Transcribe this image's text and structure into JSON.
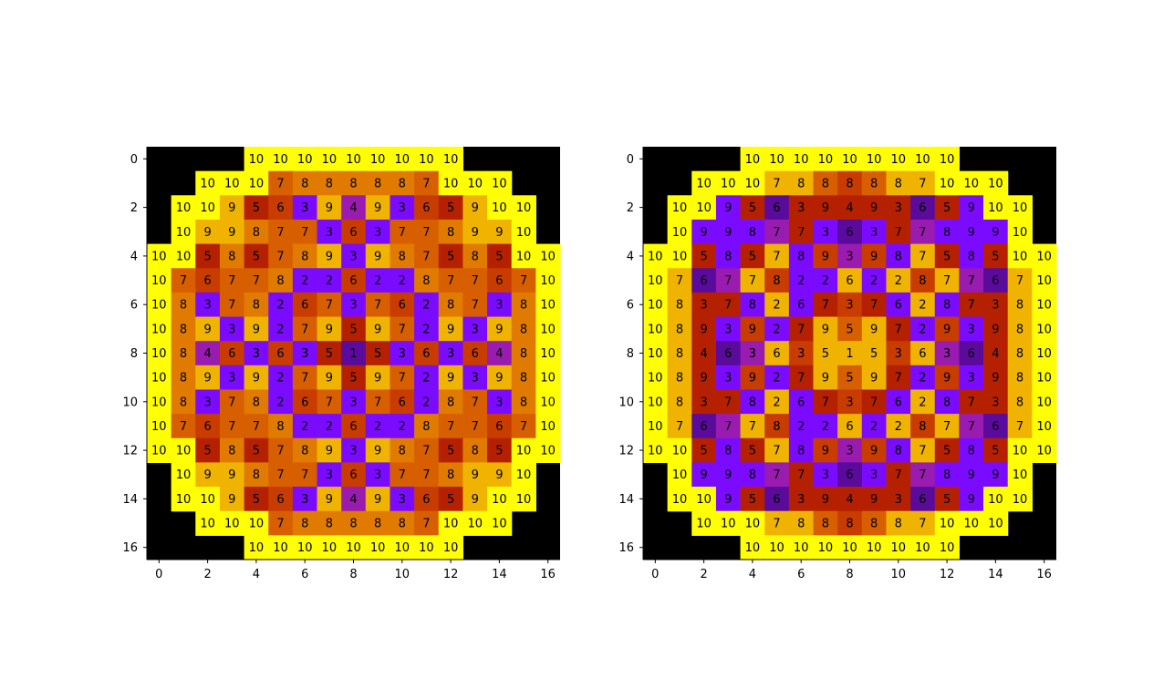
{
  "chart_data": [
    {
      "type": "heatmap",
      "title": "",
      "xlabel": "",
      "ylabel": "",
      "xticks": [
        0,
        2,
        4,
        6,
        8,
        10,
        12,
        14,
        16
      ],
      "yticks": [
        0,
        2,
        4,
        6,
        8,
        10,
        12,
        14,
        16
      ],
      "xlim": [
        0,
        16
      ],
      "ylim": [
        16,
        0
      ],
      "grid": false,
      "legend": "none",
      "cells": [
        [
          null,
          null,
          null,
          null,
          10,
          10,
          10,
          10,
          10,
          10,
          10,
          10,
          10,
          null,
          null,
          null,
          null
        ],
        [
          null,
          null,
          10,
          10,
          10,
          7,
          8,
          8,
          8,
          8,
          8,
          7,
          10,
          10,
          10,
          null,
          null
        ],
        [
          null,
          10,
          10,
          9,
          5,
          6,
          3,
          9,
          4,
          9,
          3,
          6,
          5,
          9,
          10,
          10,
          null
        ],
        [
          null,
          10,
          9,
          9,
          8,
          7,
          7,
          3,
          6,
          3,
          7,
          7,
          8,
          9,
          9,
          10,
          null
        ],
        [
          10,
          10,
          5,
          8,
          5,
          7,
          8,
          9,
          3,
          9,
          8,
          7,
          5,
          8,
          5,
          10,
          10
        ],
        [
          10,
          7,
          6,
          7,
          7,
          8,
          2,
          2,
          6,
          2,
          2,
          8,
          7,
          7,
          6,
          7,
          10
        ],
        [
          10,
          8,
          3,
          7,
          8,
          2,
          6,
          7,
          3,
          7,
          6,
          2,
          8,
          7,
          3,
          8,
          10
        ],
        [
          10,
          8,
          9,
          3,
          9,
          2,
          7,
          9,
          5,
          9,
          7,
          2,
          9,
          3,
          9,
          8,
          10
        ],
        [
          10,
          8,
          4,
          6,
          3,
          6,
          3,
          5,
          1,
          5,
          3,
          6,
          3,
          6,
          4,
          8,
          10
        ],
        [
          10,
          8,
          9,
          3,
          9,
          2,
          7,
          9,
          5,
          9,
          7,
          2,
          9,
          3,
          9,
          8,
          10
        ],
        [
          10,
          8,
          3,
          7,
          8,
          2,
          6,
          7,
          3,
          7,
          6,
          2,
          8,
          7,
          3,
          8,
          10
        ],
        [
          10,
          7,
          6,
          7,
          7,
          8,
          2,
          2,
          6,
          2,
          2,
          8,
          7,
          7,
          6,
          7,
          10
        ],
        [
          10,
          10,
          5,
          8,
          5,
          7,
          8,
          9,
          3,
          9,
          8,
          7,
          5,
          8,
          5,
          10,
          10
        ],
        [
          null,
          10,
          9,
          9,
          8,
          7,
          7,
          3,
          6,
          3,
          7,
          7,
          8,
          9,
          9,
          10,
          null
        ],
        [
          null,
          10,
          10,
          9,
          5,
          6,
          3,
          9,
          4,
          9,
          3,
          6,
          5,
          9,
          10,
          10,
          null
        ],
        [
          null,
          null,
          10,
          10,
          10,
          7,
          8,
          8,
          8,
          8,
          8,
          7,
          10,
          10,
          10,
          null,
          null
        ],
        [
          null,
          null,
          null,
          null,
          10,
          10,
          10,
          10,
          10,
          10,
          10,
          10,
          10,
          null,
          null,
          null,
          null
        ]
      ],
      "colors": {
        "empty": "#000000",
        "1": "#5b0b9c",
        "2": "#7b0bff",
        "3": "#7b0bff",
        "4": "#9a1bb0",
        "5": "#b52100",
        "6": "#c83c00",
        "7": "#d75f00",
        "8": "#e17b00",
        "9": "#f0b400",
        "10": "#ffff00"
      }
    },
    {
      "type": "heatmap",
      "title": "",
      "xlabel": "",
      "ylabel": "",
      "xticks": [
        0,
        2,
        4,
        6,
        8,
        10,
        12,
        14,
        16
      ],
      "yticks": [
        0,
        2,
        4,
        6,
        8,
        10,
        12,
        14,
        16
      ],
      "xlim": [
        0,
        16
      ],
      "ylim": [
        16,
        0
      ],
      "grid": false,
      "legend": "none",
      "cells": [
        [
          null,
          null,
          null,
          null,
          10,
          10,
          10,
          10,
          10,
          10,
          10,
          10,
          10,
          null,
          null,
          null,
          null
        ],
        [
          null,
          null,
          10,
          10,
          10,
          7,
          8,
          8,
          8,
          8,
          8,
          7,
          10,
          10,
          10,
          null,
          null
        ],
        [
          null,
          10,
          10,
          9,
          5,
          6,
          3,
          9,
          4,
          9,
          3,
          6,
          5,
          9,
          10,
          10,
          null
        ],
        [
          null,
          10,
          9,
          9,
          8,
          7,
          7,
          3,
          6,
          3,
          7,
          7,
          8,
          9,
          9,
          10,
          null
        ],
        [
          10,
          10,
          5,
          8,
          5,
          7,
          8,
          9,
          3,
          9,
          8,
          7,
          5,
          8,
          5,
          10,
          10
        ],
        [
          10,
          7,
          6,
          7,
          7,
          8,
          2,
          2,
          6,
          2,
          2,
          8,
          7,
          7,
          6,
          7,
          10
        ],
        [
          10,
          8,
          3,
          7,
          8,
          2,
          6,
          7,
          3,
          7,
          6,
          2,
          8,
          7,
          3,
          8,
          10
        ],
        [
          10,
          8,
          9,
          3,
          9,
          2,
          7,
          9,
          5,
          9,
          7,
          2,
          9,
          3,
          9,
          8,
          10
        ],
        [
          10,
          8,
          4,
          6,
          3,
          6,
          3,
          5,
          1,
          5,
          3,
          6,
          3,
          6,
          4,
          8,
          10
        ],
        [
          10,
          8,
          9,
          3,
          9,
          2,
          7,
          9,
          5,
          9,
          7,
          2,
          9,
          3,
          9,
          8,
          10
        ],
        [
          10,
          8,
          3,
          7,
          8,
          2,
          6,
          7,
          3,
          7,
          6,
          2,
          8,
          7,
          3,
          8,
          10
        ],
        [
          10,
          7,
          6,
          7,
          7,
          8,
          2,
          2,
          6,
          2,
          2,
          8,
          7,
          7,
          6,
          7,
          10
        ],
        [
          10,
          10,
          5,
          8,
          5,
          7,
          8,
          9,
          3,
          9,
          8,
          7,
          5,
          8,
          5,
          10,
          10
        ],
        [
          null,
          10,
          9,
          9,
          8,
          7,
          7,
          3,
          6,
          3,
          7,
          7,
          8,
          9,
          9,
          10,
          null
        ],
        [
          null,
          10,
          10,
          9,
          5,
          6,
          3,
          9,
          4,
          9,
          3,
          6,
          5,
          9,
          10,
          10,
          null
        ],
        [
          null,
          null,
          10,
          10,
          10,
          7,
          8,
          8,
          8,
          8,
          8,
          7,
          10,
          10,
          10,
          null,
          null
        ],
        [
          null,
          null,
          null,
          null,
          10,
          10,
          10,
          10,
          10,
          10,
          10,
          10,
          10,
          null,
          null,
          null,
          null
        ]
      ],
      "colors": {
        "empty": "#000000",
        "1": "#f0b400",
        "2": "#7b0bff",
        "3": "#b52100",
        "4": "#b52100",
        "5": "#d75f00",
        "6": "#5b0b9c",
        "7": "#9a1bb0",
        "8": "#7b0bff",
        "9": "#7b0bff",
        "10": "#ffff00"
      },
      "cell_colors": [
        [
          null,
          null,
          null,
          null,
          "#ffff00",
          "#ffff00",
          "#ffff00",
          "#ffff00",
          "#ffff00",
          "#ffff00",
          "#ffff00",
          "#ffff00",
          "#ffff00",
          null,
          null,
          null,
          null
        ],
        [
          null,
          null,
          "#ffff00",
          "#ffff00",
          "#ffff00",
          "#f0b400",
          "#f0b400",
          "#d75f00",
          "#c83c00",
          "#d75f00",
          "#f0b400",
          "#f0b400",
          "#ffff00",
          "#ffff00",
          "#ffff00",
          null,
          null
        ],
        [
          null,
          "#ffff00",
          "#ffff00",
          "#7b0bff",
          "#b52100",
          "#5b0b9c",
          "#b52100",
          "#b52100",
          "#b52100",
          "#b52100",
          "#b52100",
          "#5b0b9c",
          "#b52100",
          "#7b0bff",
          "#ffff00",
          "#ffff00",
          null
        ],
        [
          null,
          "#ffff00",
          "#7b0bff",
          "#7b0bff",
          "#7b0bff",
          "#9a1bb0",
          "#b52100",
          "#7b0bff",
          "#5b0b9c",
          "#7b0bff",
          "#b52100",
          "#9a1bb0",
          "#7b0bff",
          "#7b0bff",
          "#7b0bff",
          "#ffff00",
          null
        ],
        [
          "#ffff00",
          "#ffff00",
          "#b52100",
          "#7b0bff",
          "#b52100",
          "#f0b400",
          "#7b0bff",
          "#c83c00",
          "#9a1bb0",
          "#c83c00",
          "#7b0bff",
          "#f0b400",
          "#b52100",
          "#7b0bff",
          "#b52100",
          "#ffff00",
          "#ffff00"
        ],
        [
          "#ffff00",
          "#f0b400",
          "#5b0b9c",
          "#9a1bb0",
          "#f0b400",
          "#c83c00",
          "#7b0bff",
          "#7b0bff",
          "#f0b400",
          "#7b0bff",
          "#f0b400",
          "#c83c00",
          "#f0b400",
          "#9a1bb0",
          "#5b0b9c",
          "#f0b400",
          "#ffff00"
        ],
        [
          "#ffff00",
          "#f0b400",
          "#b52100",
          "#b52100",
          "#7b0bff",
          "#f0b400",
          "#7b0bff",
          "#b52100",
          "#c83c00",
          "#b52100",
          "#7b0bff",
          "#f0b400",
          "#7b0bff",
          "#b52100",
          "#b52100",
          "#f0b400",
          "#ffff00"
        ],
        [
          "#ffff00",
          "#f0b400",
          "#b52100",
          "#7b0bff",
          "#c83c00",
          "#7b0bff",
          "#b52100",
          "#f0b400",
          "#d75f00",
          "#f0b400",
          "#b52100",
          "#7b0bff",
          "#c83c00",
          "#7b0bff",
          "#b52100",
          "#f0b400",
          "#ffff00"
        ],
        [
          "#ffff00",
          "#f0b400",
          "#b52100",
          "#5b0b9c",
          "#9a1bb0",
          "#f0b400",
          "#c83c00",
          "#f0b400",
          "#f0b400",
          "#f0b400",
          "#c83c00",
          "#f0b400",
          "#9a1bb0",
          "#5b0b9c",
          "#b52100",
          "#f0b400",
          "#ffff00"
        ],
        [
          "#ffff00",
          "#f0b400",
          "#b52100",
          "#7b0bff",
          "#c83c00",
          "#7b0bff",
          "#b52100",
          "#f0b400",
          "#d75f00",
          "#f0b400",
          "#b52100",
          "#7b0bff",
          "#c83c00",
          "#7b0bff",
          "#b52100",
          "#f0b400",
          "#ffff00"
        ],
        [
          "#ffff00",
          "#f0b400",
          "#b52100",
          "#b52100",
          "#7b0bff",
          "#f0b400",
          "#7b0bff",
          "#b52100",
          "#c83c00",
          "#b52100",
          "#7b0bff",
          "#f0b400",
          "#7b0bff",
          "#b52100",
          "#b52100",
          "#f0b400",
          "#ffff00"
        ],
        [
          "#ffff00",
          "#f0b400",
          "#5b0b9c",
          "#9a1bb0",
          "#f0b400",
          "#c83c00",
          "#7b0bff",
          "#7b0bff",
          "#f0b400",
          "#7b0bff",
          "#f0b400",
          "#c83c00",
          "#f0b400",
          "#9a1bb0",
          "#5b0b9c",
          "#f0b400",
          "#ffff00"
        ],
        [
          "#ffff00",
          "#ffff00",
          "#b52100",
          "#7b0bff",
          "#b52100",
          "#f0b400",
          "#7b0bff",
          "#c83c00",
          "#9a1bb0",
          "#c83c00",
          "#7b0bff",
          "#f0b400",
          "#b52100",
          "#7b0bff",
          "#b52100",
          "#ffff00",
          "#ffff00"
        ],
        [
          null,
          "#ffff00",
          "#7b0bff",
          "#7b0bff",
          "#7b0bff",
          "#9a1bb0",
          "#b52100",
          "#7b0bff",
          "#5b0b9c",
          "#7b0bff",
          "#b52100",
          "#9a1bb0",
          "#7b0bff",
          "#7b0bff",
          "#7b0bff",
          "#ffff00",
          null
        ],
        [
          null,
          "#ffff00",
          "#ffff00",
          "#7b0bff",
          "#b52100",
          "#5b0b9c",
          "#b52100",
          "#b52100",
          "#b52100",
          "#b52100",
          "#b52100",
          "#5b0b9c",
          "#b52100",
          "#7b0bff",
          "#ffff00",
          "#ffff00",
          null
        ],
        [
          null,
          null,
          "#ffff00",
          "#ffff00",
          "#ffff00",
          "#f0b400",
          "#f0b400",
          "#d75f00",
          "#c83c00",
          "#d75f00",
          "#f0b400",
          "#f0b400",
          "#ffff00",
          "#ffff00",
          "#ffff00",
          null,
          null
        ],
        [
          null,
          null,
          null,
          null,
          "#ffff00",
          "#ffff00",
          "#ffff00",
          "#ffff00",
          "#ffff00",
          "#ffff00",
          "#ffff00",
          "#ffff00",
          "#ffff00",
          null,
          null,
          null,
          null
        ]
      ]
    }
  ]
}
